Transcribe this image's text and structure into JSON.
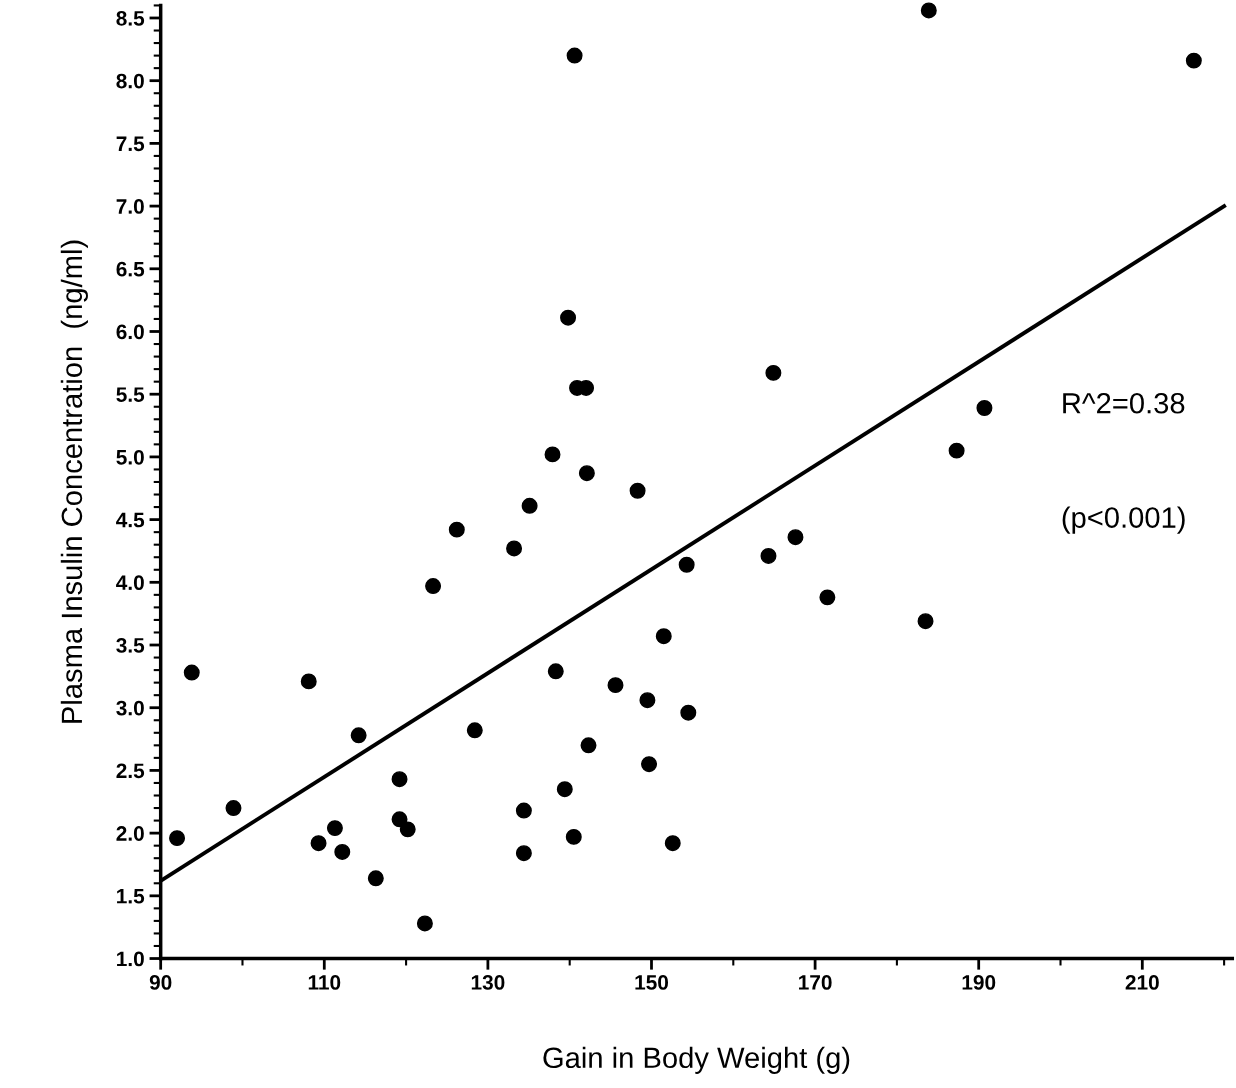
{
  "chart_data": {
    "type": "scatter",
    "xlabel": "Gain in Body Weight (g)",
    "ylabel": "Plasma Insulin Concentration  (ng/ml)",
    "xlim": [
      90,
      221
    ],
    "ylim": [
      1.0,
      8.6
    ],
    "xticks": [
      90,
      110,
      130,
      150,
      170,
      190,
      210
    ],
    "yticks": [
      {
        "value": 1.0,
        "label": "1.0"
      },
      {
        "value": 1.5,
        "label": "1.5"
      },
      {
        "value": 2.0,
        "label": "2.0"
      },
      {
        "value": 2.5,
        "label": "2.5"
      },
      {
        "value": 3.0,
        "label": "3.0"
      },
      {
        "value": 3.5,
        "label": "3.5"
      },
      {
        "value": 4.0,
        "label": "4.0"
      },
      {
        "value": 4.5,
        "label": "4.5"
      },
      {
        "value": 5.0,
        "label": "5.0"
      },
      {
        "value": 5.5,
        "label": "5.5"
      },
      {
        "value": 6.0,
        "label": "6.0"
      },
      {
        "value": 6.5,
        "label": "6.5"
      },
      {
        "value": 7.0,
        "label": "7.0"
      },
      {
        "value": 7.5,
        "label": "7.5"
      },
      {
        "value": 8.0,
        "label": "8.0"
      },
      {
        "value": 8.5,
        "label": "8.5"
      }
    ],
    "grid": false,
    "legend": false,
    "annotations": [
      "R^2=0.38",
      "(p<0.001)"
    ],
    "series": [
      {
        "marker": "circle",
        "color": "#000000",
        "x": [
          92.0,
          93.8,
          98.9,
          108.1,
          109.3,
          111.3,
          112.2,
          114.2,
          116.3,
          119.2,
          119.2,
          120.2,
          122.3,
          123.3,
          126.2,
          128.4,
          133.2,
          134.4,
          134.4,
          135.1,
          137.9,
          138.3,
          139.4,
          139.8,
          140.5,
          140.6,
          140.9,
          142.0,
          142.1,
          142.3,
          145.6,
          148.3,
          149.5,
          149.7,
          151.5,
          152.6,
          154.3,
          154.5,
          164.3,
          164.9,
          167.6,
          171.5,
          183.5,
          183.9,
          187.3,
          190.7,
          216.3
        ],
        "values": [
          1.96,
          3.28,
          2.2,
          3.21,
          1.92,
          2.04,
          1.85,
          2.78,
          1.64,
          2.43,
          2.11,
          2.03,
          1.28,
          3.97,
          4.42,
          2.82,
          4.27,
          2.18,
          1.84,
          4.61,
          5.02,
          3.29,
          2.35,
          6.11,
          1.97,
          8.2,
          5.55,
          5.55,
          4.87,
          2.7,
          3.18,
          4.73,
          3.06,
          2.55,
          3.57,
          1.92,
          4.14,
          2.96,
          4.21,
          5.67,
          4.36,
          3.88,
          3.69,
          8.56,
          5.05,
          5.39,
          8.16
        ]
      },
      {
        "type": "line",
        "color": "#000000",
        "x": [
          90,
          220
        ],
        "values": [
          1.62,
          7.0
        ]
      }
    ]
  }
}
